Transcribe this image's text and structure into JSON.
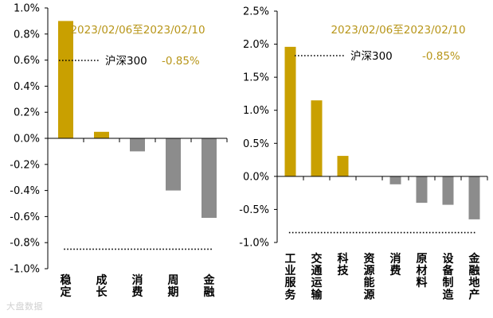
{
  "chart_data": [
    {
      "type": "bar",
      "period_label": "2023/02/06至2023/02/10",
      "benchmark": {
        "name": "沪深300",
        "value_label": "-0.85%",
        "value": -0.85
      },
      "categories": [
        "稳定",
        "成长",
        "消费",
        "周期",
        "金融"
      ],
      "values": [
        0.9,
        0.05,
        -0.1,
        -0.4,
        -0.61
      ],
      "ylim": [
        -1.0,
        1.0
      ],
      "yticks": [
        "1.0%",
        "0.8%",
        "0.6%",
        "0.4%",
        "0.2%",
        "0.0%",
        "-0.2%",
        "-0.4%",
        "-0.6%",
        "-0.8%",
        "-1.0%"
      ],
      "ytick_values": [
        1.0,
        0.8,
        0.6,
        0.4,
        0.2,
        0.0,
        -0.2,
        -0.4,
        -0.6,
        -0.8,
        -1.0
      ],
      "grid": false,
      "colors": {
        "positive": "#c9a000",
        "negative": "#8c8c8c",
        "benchmark_line": "#000000"
      }
    },
    {
      "type": "bar",
      "period_label": "2023/02/06至2023/02/10",
      "benchmark": {
        "name": "沪深300",
        "value_label": "-0.85%",
        "value": -0.85
      },
      "categories": [
        "工业服务",
        "交通运输",
        "科技",
        "资源能源",
        "消费",
        "原材料",
        "设备制造",
        "金融地产"
      ],
      "values": [
        1.96,
        1.15,
        0.31,
        0.0,
        -0.12,
        -0.4,
        -0.43,
        -0.65
      ],
      "ylim": [
        -1.0,
        2.5
      ],
      "yticks": [
        "2.5%",
        "2.0%",
        "1.5%",
        "1.0%",
        "0.5%",
        "0.0%",
        "-0.5%",
        "-1.0%"
      ],
      "ytick_values": [
        2.5,
        2.0,
        1.5,
        1.0,
        0.5,
        0.0,
        -0.5,
        -1.0
      ],
      "grid": false,
      "colors": {
        "positive": "#c9a000",
        "negative": "#8c8c8c",
        "benchmark_line": "#000000"
      }
    }
  ],
  "watermark": "大盘数据"
}
